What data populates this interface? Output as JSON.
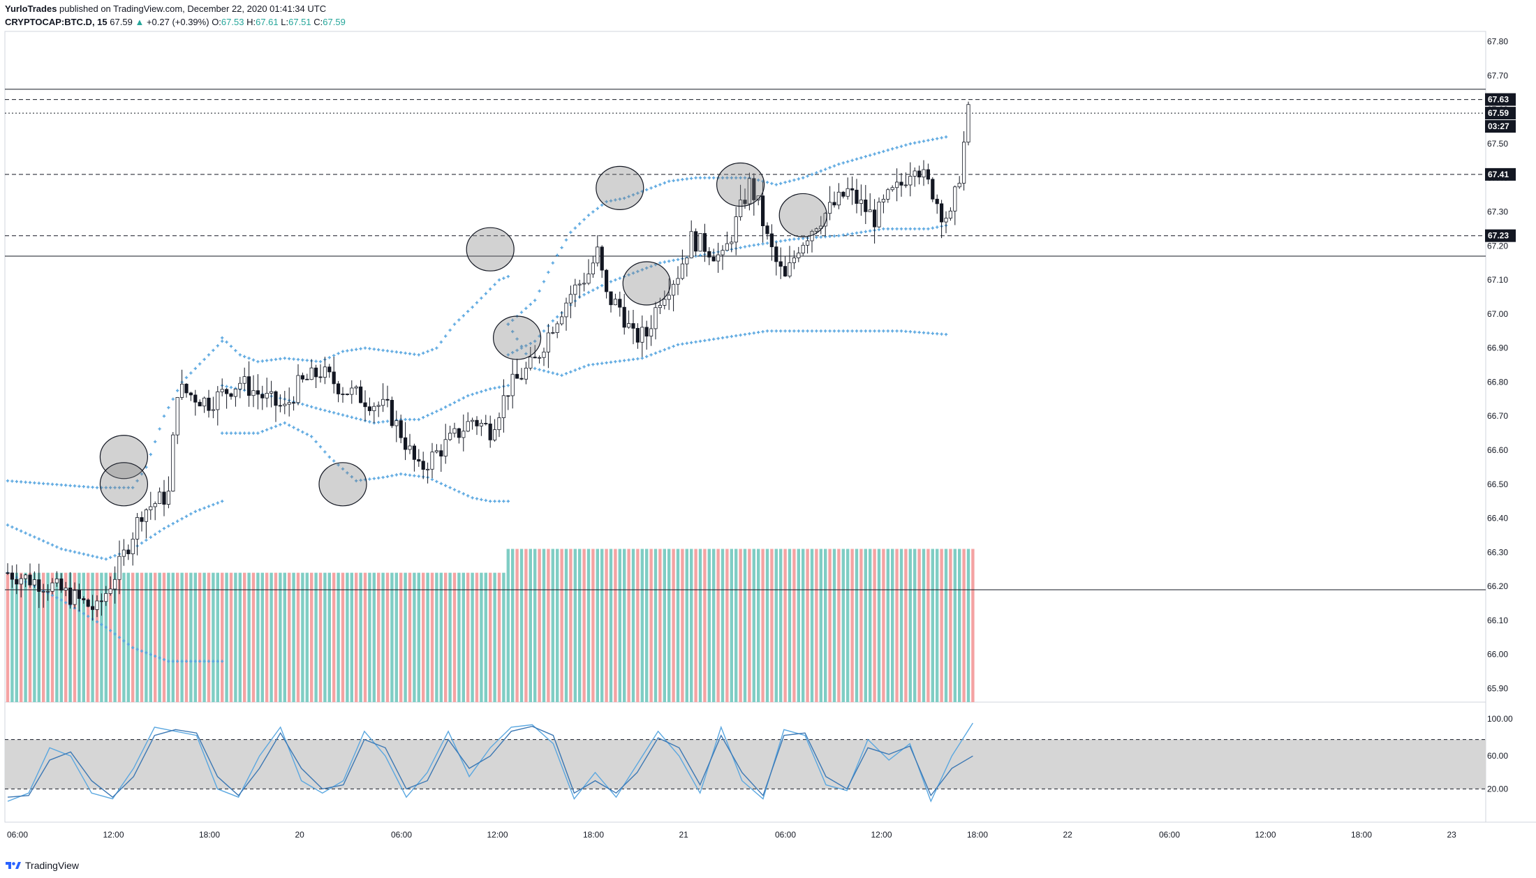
{
  "header": {
    "author": "YurloTrades",
    "published": "published on TradingView.com, December 22, 2020 01:41:34 UTC",
    "symbol": "CRYPTOCAP:BTC.D, 15",
    "last": "67.59",
    "change_arrow": "▲",
    "change": "+0.27 (+0.39%)",
    "o_label": "O:",
    "o": "67.53",
    "h_label": "H:",
    "h": "67.61",
    "l_label": "L:",
    "l": "67.51",
    "c_label": "C:",
    "c": "67.59"
  },
  "footer": {
    "logo_text": "TradingView",
    "logo_icon": "tradingview-logo-icon"
  },
  "colors": {
    "candle": "#131722",
    "band": "#5aa7e0",
    "vol_up": "#7fcdc4",
    "vol_down": "#f4a3a3",
    "circle_fill": "#7f7f7f",
    "osc_band": "#d6d6d6",
    "osc_line1": "#5aa7e0",
    "osc_line2": "#3c78b4",
    "tag_bg": "#131722"
  },
  "chart_data": {
    "type": "candlestick",
    "symbol": "CRYPTOCAP:BTC.D",
    "interval": "15",
    "price_axis": {
      "ticks": [
        "67.80",
        "67.70",
        "67.60",
        "67.50",
        "67.40",
        "67.30",
        "67.20",
        "67.10",
        "67.00",
        "66.90",
        "66.80",
        "66.70",
        "66.60",
        "66.50",
        "66.40",
        "66.30",
        "66.20",
        "66.10",
        "66.00",
        "65.90"
      ],
      "range": [
        65.86,
        67.83
      ]
    },
    "price_tags": [
      "67.63",
      "67.59",
      "03:27",
      "67.41",
      "67.23"
    ],
    "time_axis": {
      "ticks": [
        "06:00",
        "12:00",
        "18:00",
        "20",
        "06:00",
        "12:00",
        "18:00",
        "21",
        "06:00",
        "12:00",
        "18:00",
        "22",
        "06:00",
        "12:00",
        "18:00",
        "23"
      ]
    },
    "horizontal_lines": [
      {
        "price": 67.66,
        "style": "solid"
      },
      {
        "price": 67.63,
        "style": "dashed"
      },
      {
        "price": 67.59,
        "style": "dotted"
      },
      {
        "price": 67.41,
        "style": "dashed"
      },
      {
        "price": 67.23,
        "style": "dashed"
      },
      {
        "price": 67.17,
        "style": "solid"
      },
      {
        "price": 66.19,
        "style": "solid"
      }
    ],
    "close_path": [
      [
        0,
        66.24
      ],
      [
        10,
        66.2
      ],
      [
        20,
        66.13
      ],
      [
        25,
        66.26
      ],
      [
        30,
        66.42
      ],
      [
        36,
        66.47
      ],
      [
        38,
        66.78
      ],
      [
        45,
        66.74
      ],
      [
        52,
        66.8
      ],
      [
        58,
        66.75
      ],
      [
        62,
        66.72
      ],
      [
        65,
        66.79
      ],
      [
        70,
        66.83
      ],
      [
        75,
        66.78
      ],
      [
        80,
        66.75
      ],
      [
        85,
        66.72
      ],
      [
        88,
        66.65
      ],
      [
        92,
        66.54
      ],
      [
        95,
        66.58
      ],
      [
        100,
        66.64
      ],
      [
        104,
        66.69
      ],
      [
        108,
        66.66
      ],
      [
        112,
        66.78
      ],
      [
        115,
        66.82
      ],
      [
        118,
        66.86
      ],
      [
        122,
        66.97
      ],
      [
        126,
        67.06
      ],
      [
        130,
        67.12
      ],
      [
        132,
        67.18
      ],
      [
        134,
        67.05
      ],
      [
        137,
        67.02
      ],
      [
        140,
        66.93
      ],
      [
        143,
        66.94
      ],
      [
        146,
        67.05
      ],
      [
        150,
        67.12
      ],
      [
        153,
        67.22
      ],
      [
        156,
        67.2
      ],
      [
        160,
        67.16
      ],
      [
        163,
        67.27
      ],
      [
        166,
        67.38
      ],
      [
        168,
        67.32
      ],
      [
        170,
        67.22
      ],
      [
        172,
        67.15
      ],
      [
        174,
        67.1
      ],
      [
        177,
        67.2
      ],
      [
        181,
        67.27
      ],
      [
        185,
        67.32
      ],
      [
        188,
        67.36
      ],
      [
        191,
        67.32
      ],
      [
        194,
        67.28
      ],
      [
        197,
        67.34
      ],
      [
        200,
        67.38
      ],
      [
        203,
        67.45
      ],
      [
        205,
        67.4
      ],
      [
        207,
        67.36
      ],
      [
        209,
        67.3
      ],
      [
        211,
        67.28
      ],
      [
        213,
        67.41
      ],
      [
        215,
        67.59
      ]
    ],
    "bands": [
      {
        "name": "upper_a",
        "pts": [
          [
            0,
            66.51
          ],
          [
            20,
            66.49
          ],
          [
            28,
            66.49
          ],
          [
            31,
            66.55
          ],
          [
            35,
            66.7
          ],
          [
            39,
            66.8
          ],
          [
            45,
            66.88
          ],
          [
            48,
            66.92
          ]
        ]
      },
      {
        "name": "mid_a",
        "pts": [
          [
            0,
            66.38
          ],
          [
            12,
            66.31
          ],
          [
            22,
            66.28
          ],
          [
            28,
            66.31
          ],
          [
            35,
            66.37
          ],
          [
            42,
            66.42
          ],
          [
            48,
            66.45
          ]
        ]
      },
      {
        "name": "lower_a",
        "pts": [
          [
            0,
            66.24
          ],
          [
            12,
            66.16
          ],
          [
            22,
            66.08
          ],
          [
            28,
            66.02
          ],
          [
            36,
            65.98
          ],
          [
            48,
            65.98
          ]
        ]
      },
      {
        "name": "upper_b",
        "pts": [
          [
            48,
            66.93
          ],
          [
            52,
            66.88
          ],
          [
            56,
            66.86
          ],
          [
            62,
            66.87
          ],
          [
            70,
            66.86
          ],
          [
            75,
            66.89
          ],
          [
            80,
            66.9
          ],
          [
            86,
            66.89
          ],
          [
            92,
            66.88
          ],
          [
            96,
            66.9
          ],
          [
            100,
            66.97
          ],
          [
            104,
            67.02
          ],
          [
            107,
            67.06
          ],
          [
            110,
            67.1
          ],
          [
            112,
            67.11
          ]
        ]
      },
      {
        "name": "mid_b",
        "pts": [
          [
            48,
            66.79
          ],
          [
            55,
            66.77
          ],
          [
            62,
            66.75
          ],
          [
            70,
            66.72
          ],
          [
            76,
            66.7
          ],
          [
            82,
            66.68
          ],
          [
            88,
            66.69
          ],
          [
            92,
            66.69
          ],
          [
            97,
            66.72
          ],
          [
            103,
            66.76
          ],
          [
            108,
            66.78
          ],
          [
            112,
            66.79
          ]
        ]
      },
      {
        "name": "lower_b",
        "pts": [
          [
            48,
            66.65
          ],
          [
            56,
            66.65
          ],
          [
            62,
            66.68
          ],
          [
            68,
            66.64
          ],
          [
            72,
            66.58
          ],
          [
            78,
            66.51
          ],
          [
            84,
            66.52
          ],
          [
            88,
            66.53
          ],
          [
            94,
            66.52
          ],
          [
            99,
            66.49
          ],
          [
            104,
            66.46
          ],
          [
            108,
            66.45
          ],
          [
            112,
            66.45
          ]
        ]
      },
      {
        "name": "upper_c",
        "pts": [
          [
            112,
            66.97
          ],
          [
            118,
            67.04
          ],
          [
            122,
            67.15
          ],
          [
            126,
            67.24
          ],
          [
            130,
            67.29
          ],
          [
            134,
            67.33
          ],
          [
            138,
            67.34
          ],
          [
            144,
            67.37
          ],
          [
            148,
            67.39
          ],
          [
            154,
            67.4
          ],
          [
            160,
            67.4
          ],
          [
            166,
            67.4
          ],
          [
            172,
            67.38
          ],
          [
            178,
            67.4
          ],
          [
            186,
            67.44
          ],
          [
            194,
            67.47
          ],
          [
            202,
            67.5
          ],
          [
            210,
            67.52
          ]
        ]
      },
      {
        "name": "mid_c",
        "pts": [
          [
            112,
            66.88
          ],
          [
            118,
            66.92
          ],
          [
            122,
            66.98
          ],
          [
            128,
            67.05
          ],
          [
            134,
            67.09
          ],
          [
            140,
            67.12
          ],
          [
            146,
            67.15
          ],
          [
            150,
            67.16
          ],
          [
            158,
            67.18
          ],
          [
            166,
            67.2
          ],
          [
            176,
            67.22
          ],
          [
            186,
            67.23
          ],
          [
            196,
            67.25
          ],
          [
            206,
            67.25
          ],
          [
            210,
            67.26
          ]
        ]
      },
      {
        "name": "lower_c",
        "pts": [
          [
            112,
            66.97
          ],
          [
            118,
            66.84
          ],
          [
            124,
            66.82
          ],
          [
            130,
            66.85
          ],
          [
            136,
            66.86
          ],
          [
            142,
            66.87
          ],
          [
            150,
            66.91
          ],
          [
            160,
            66.93
          ],
          [
            170,
            66.95
          ],
          [
            180,
            66.95
          ],
          [
            190,
            66.95
          ],
          [
            200,
            66.95
          ],
          [
            210,
            66.94
          ]
        ]
      }
    ],
    "volume_profile": {
      "segments": [
        {
          "from": 0,
          "to": 112,
          "top_price": 66.24
        },
        {
          "from": 112,
          "to": 217,
          "top_price": 66.31
        }
      ],
      "bottom_price": 65.86
    },
    "highlight_circles": [
      {
        "bar": 26,
        "price": 66.58
      },
      {
        "bar": 26,
        "price": 66.5
      },
      {
        "bar": 75,
        "price": 66.5
      },
      {
        "bar": 108,
        "price": 67.19
      },
      {
        "bar": 114,
        "price": 66.93
      },
      {
        "bar": 137,
        "price": 67.37
      },
      {
        "bar": 143,
        "price": 67.09
      },
      {
        "bar": 164,
        "price": 67.38
      },
      {
        "bar": 178,
        "price": 67.29
      }
    ],
    "oscillator": {
      "type": "stochastic_rsi",
      "ticks": [
        "100.00",
        "60.00",
        "20.00"
      ],
      "band": [
        20,
        80
      ],
      "k": [
        [
          0,
          5
        ],
        [
          4,
          15
        ],
        [
          8,
          70
        ],
        [
          12,
          60
        ],
        [
          16,
          15
        ],
        [
          20,
          8
        ],
        [
          24,
          45
        ],
        [
          28,
          95
        ],
        [
          32,
          90
        ],
        [
          36,
          85
        ],
        [
          40,
          20
        ],
        [
          44,
          10
        ],
        [
          48,
          60
        ],
        [
          52,
          95
        ],
        [
          56,
          30
        ],
        [
          60,
          15
        ],
        [
          64,
          30
        ],
        [
          68,
          90
        ],
        [
          72,
          60
        ],
        [
          76,
          10
        ],
        [
          80,
          40
        ],
        [
          84,
          90
        ],
        [
          88,
          35
        ],
        [
          92,
          70
        ],
        [
          96,
          95
        ],
        [
          100,
          98
        ],
        [
          104,
          75
        ],
        [
          108,
          8
        ],
        [
          112,
          40
        ],
        [
          116,
          10
        ],
        [
          120,
          50
        ],
        [
          124,
          90
        ],
        [
          128,
          60
        ],
        [
          132,
          15
        ],
        [
          136,
          95
        ],
        [
          140,
          30
        ],
        [
          144,
          8
        ],
        [
          148,
          92
        ],
        [
          152,
          85
        ],
        [
          156,
          25
        ],
        [
          160,
          18
        ],
        [
          164,
          80
        ],
        [
          168,
          55
        ],
        [
          172,
          75
        ],
        [
          176,
          5
        ],
        [
          180,
          60
        ],
        [
          184,
          100
        ]
      ],
      "d": [
        [
          0,
          10
        ],
        [
          4,
          12
        ],
        [
          8,
          55
        ],
        [
          12,
          65
        ],
        [
          16,
          30
        ],
        [
          20,
          10
        ],
        [
          24,
          35
        ],
        [
          28,
          85
        ],
        [
          32,
          92
        ],
        [
          36,
          88
        ],
        [
          40,
          35
        ],
        [
          44,
          12
        ],
        [
          48,
          45
        ],
        [
          52,
          88
        ],
        [
          56,
          45
        ],
        [
          60,
          20
        ],
        [
          64,
          25
        ],
        [
          68,
          80
        ],
        [
          72,
          70
        ],
        [
          76,
          20
        ],
        [
          80,
          30
        ],
        [
          84,
          80
        ],
        [
          88,
          45
        ],
        [
          92,
          60
        ],
        [
          96,
          90
        ],
        [
          100,
          96
        ],
        [
          104,
          85
        ],
        [
          108,
          15
        ],
        [
          112,
          30
        ],
        [
          116,
          15
        ],
        [
          120,
          40
        ],
        [
          124,
          82
        ],
        [
          128,
          70
        ],
        [
          132,
          25
        ],
        [
          136,
          85
        ],
        [
          140,
          40
        ],
        [
          144,
          12
        ],
        [
          148,
          85
        ],
        [
          152,
          88
        ],
        [
          156,
          35
        ],
        [
          160,
          20
        ],
        [
          164,
          70
        ],
        [
          168,
          62
        ],
        [
          172,
          72
        ],
        [
          176,
          12
        ],
        [
          180,
          45
        ],
        [
          184,
          60
        ]
      ]
    }
  }
}
